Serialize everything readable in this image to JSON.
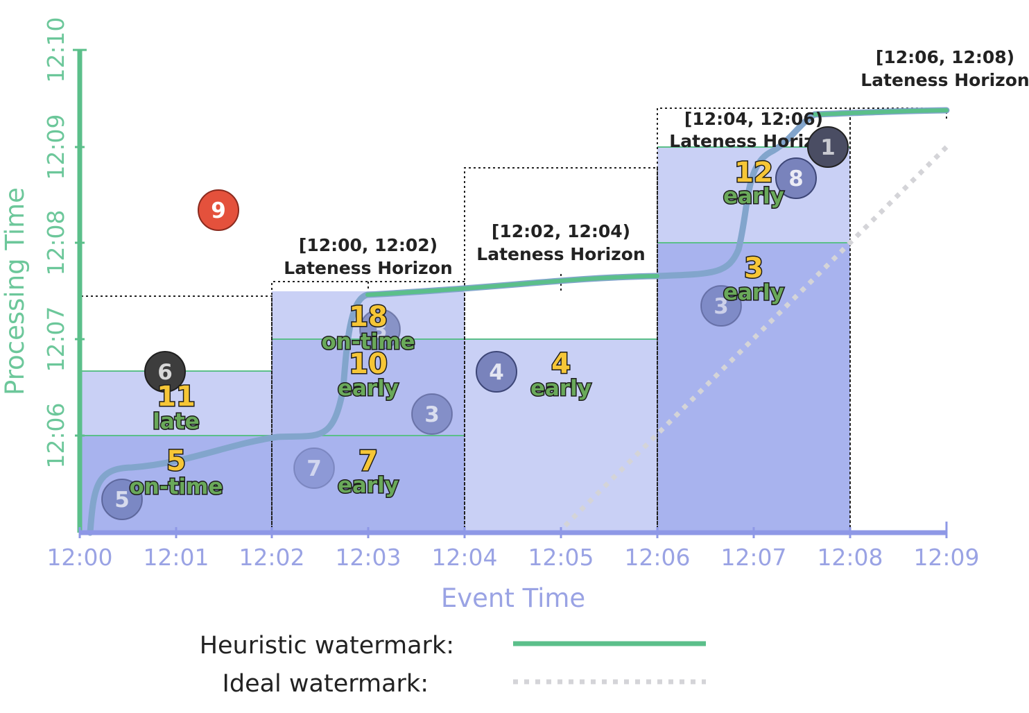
{
  "x_axis": {
    "title": "Event Time",
    "ticks": [
      "12:00",
      "12:01",
      "12:02",
      "12:03",
      "12:04",
      "12:05",
      "12:06",
      "12:07",
      "12:08",
      "12:09"
    ]
  },
  "y_axis": {
    "title": "Processing Time",
    "ticks": [
      "12:06",
      "12:07",
      "12:08",
      "12:09",
      "12:10"
    ]
  },
  "windows": [
    {
      "id": "w1",
      "range": "[12:00, 12:02)",
      "lateness_label": ""
    },
    {
      "id": "w2",
      "range": "[12:00, 12:02)",
      "lateness_label": "Lateness Horizon"
    },
    {
      "id": "w3",
      "range": "[12:02, 12:04)",
      "lateness_label": "Lateness Horizon"
    },
    {
      "id": "w4",
      "range": "[12:04, 12:06)",
      "lateness_label": "Lateness Horizon"
    },
    {
      "id": "w5",
      "range": "[12:06, 12:08)",
      "lateness_label": "Lateness Horizon"
    }
  ],
  "pane_results": [
    {
      "value": "5",
      "tag": "on-time"
    },
    {
      "value": "11",
      "tag": "late"
    },
    {
      "value": "7",
      "tag": "early"
    },
    {
      "value": "10",
      "tag": "early"
    },
    {
      "value": "18",
      "tag": "on-time"
    },
    {
      "value": "4",
      "tag": "early"
    },
    {
      "value": "3",
      "tag": "early"
    },
    {
      "value": "12",
      "tag": "early"
    }
  ],
  "data_points": [
    {
      "value": "5",
      "state": "processed"
    },
    {
      "value": "6",
      "state": "late-accepted"
    },
    {
      "value": "9",
      "state": "dropped"
    },
    {
      "value": "7",
      "state": "processed"
    },
    {
      "value": "3",
      "state": "processed"
    },
    {
      "value": "8",
      "state": "processed"
    },
    {
      "value": "4",
      "state": "processed"
    },
    {
      "value": "3",
      "state": "processed"
    },
    {
      "value": "8",
      "state": "processed"
    },
    {
      "value": "1",
      "state": "late-accepted"
    }
  ],
  "legend": {
    "heuristic": "Heuristic watermark:",
    "ideal": "Ideal watermark:"
  },
  "colors": {
    "heuristic_watermark": "#5bbf8a",
    "ideal_watermark": "#d4d4d8",
    "pane_light": "#c9d0f5",
    "pane_dark": "#a8b3ee",
    "dot_processed": "#5d6aa8",
    "dot_late": "#3d3d3d",
    "dot_dropped": "#e4513c",
    "pane_number": "#f6c637",
    "pane_tag": "#6aa95a"
  }
}
